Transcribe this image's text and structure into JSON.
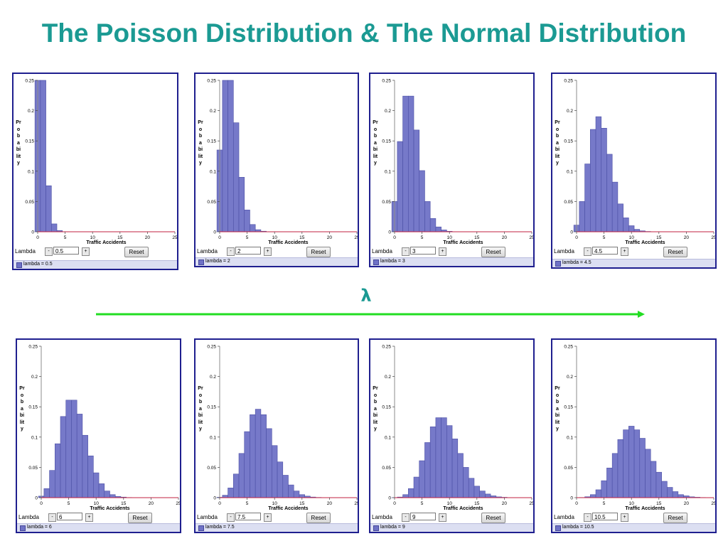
{
  "title": "The Poisson Distribution & The Normal Distribution",
  "lambda_symbol": "λ",
  "colors": {
    "title": "#1b9a93",
    "arrow": "#22dd22",
    "bar": "#7679c9",
    "bar_border": "#4c4fa5",
    "axis": "#c02040",
    "panel_border": "#1f1f8f",
    "legend_bg": "#dcdff2"
  },
  "panel_ui": {
    "ylabel": "Probability",
    "xlabel": "Traffic Accidents",
    "lambda_label": "Lambda",
    "minus": "-",
    "plus": "+",
    "reset": "Reset",
    "yticks": [
      "0",
      "0.05",
      "0.1",
      "0.15",
      "0.2",
      "0.25"
    ],
    "xticks": [
      "0",
      "5",
      "10",
      "15",
      "20",
      "25"
    ]
  },
  "panels": [
    {
      "lambda_value": "0.5",
      "legend": "lambda = 0.5"
    },
    {
      "lambda_value": "2",
      "legend": "lambda = 2"
    },
    {
      "lambda_value": "3",
      "legend": "lambda = 3"
    },
    {
      "lambda_value": "4.5",
      "legend": "lambda = 4.5"
    },
    {
      "lambda_value": "6",
      "legend": "lambda = 6"
    },
    {
      "lambda_value": "7.5",
      "legend": "lambda = 7.5"
    },
    {
      "lambda_value": "9",
      "legend": "lambda = 9"
    },
    {
      "lambda_value": "10.5",
      "legend": "lambda = 10.5"
    }
  ],
  "chart_data": [
    {
      "type": "bar",
      "xlabel": "Traffic Accidents",
      "ylabel": "Probability",
      "xlim": [
        0,
        25
      ],
      "ylim": [
        0,
        0.25
      ],
      "x": [
        0,
        1,
        2,
        3,
        4
      ],
      "values": [
        0.25,
        0.25,
        0.076,
        0.013,
        0.002
      ],
      "legend": "lambda = 0.5"
    },
    {
      "type": "bar",
      "xlabel": "Traffic Accidents",
      "ylabel": "Probability",
      "xlim": [
        0,
        25
      ],
      "ylim": [
        0,
        0.25
      ],
      "x": [
        0,
        1,
        2,
        3,
        4,
        5,
        6,
        7,
        8
      ],
      "values": [
        0.135,
        0.25,
        0.25,
        0.18,
        0.09,
        0.036,
        0.012,
        0.0034,
        0.0009
      ],
      "legend": "lambda = 2"
    },
    {
      "type": "bar",
      "xlabel": "Traffic Accidents",
      "ylabel": "Probability",
      "xlim": [
        0,
        25
      ],
      "ylim": [
        0,
        0.25
      ],
      "x": [
        0,
        1,
        2,
        3,
        4,
        5,
        6,
        7,
        8,
        9,
        10
      ],
      "values": [
        0.05,
        0.149,
        0.224,
        0.224,
        0.168,
        0.101,
        0.05,
        0.022,
        0.008,
        0.003,
        0.0008
      ],
      "legend": "lambda = 3"
    },
    {
      "type": "bar",
      "xlabel": "Traffic Accidents",
      "ylabel": "Probability",
      "xlim": [
        0,
        25
      ],
      "ylim": [
        0,
        0.25
      ],
      "x": [
        0,
        1,
        2,
        3,
        4,
        5,
        6,
        7,
        8,
        9,
        10,
        11,
        12,
        13
      ],
      "values": [
        0.011,
        0.05,
        0.112,
        0.169,
        0.19,
        0.171,
        0.128,
        0.082,
        0.046,
        0.023,
        0.01,
        0.004,
        0.0015,
        0.0005
      ],
      "legend": "lambda = 4.5"
    },
    {
      "type": "bar",
      "xlabel": "Traffic Accidents",
      "ylabel": "Probability",
      "xlim": [
        0,
        25
      ],
      "ylim": [
        0,
        0.25
      ],
      "x": [
        0,
        1,
        2,
        3,
        4,
        5,
        6,
        7,
        8,
        9,
        10,
        11,
        12,
        13,
        14,
        15,
        16
      ],
      "values": [
        0.0025,
        0.015,
        0.045,
        0.089,
        0.134,
        0.161,
        0.161,
        0.138,
        0.103,
        0.069,
        0.041,
        0.023,
        0.011,
        0.005,
        0.002,
        0.0009,
        0.0003
      ],
      "legend": "lambda = 6"
    },
    {
      "type": "bar",
      "xlabel": "Traffic Accidents",
      "ylabel": "Probability",
      "xlim": [
        0,
        25
      ],
      "ylim": [
        0,
        0.25
      ],
      "x": [
        0,
        1,
        2,
        3,
        4,
        5,
        6,
        7,
        8,
        9,
        10,
        11,
        12,
        13,
        14,
        15,
        16,
        17,
        18
      ],
      "values": [
        0.0006,
        0.004,
        0.016,
        0.039,
        0.073,
        0.109,
        0.137,
        0.146,
        0.137,
        0.114,
        0.086,
        0.059,
        0.037,
        0.021,
        0.011,
        0.005,
        0.0025,
        0.001,
        0.0004
      ],
      "legend": "lambda = 7.5"
    },
    {
      "type": "bar",
      "xlabel": "Traffic Accidents",
      "ylabel": "Probability",
      "xlim": [
        0,
        25
      ],
      "ylim": [
        0,
        0.25
      ],
      "x": [
        0,
        1,
        2,
        3,
        4,
        5,
        6,
        7,
        8,
        9,
        10,
        11,
        12,
        13,
        14,
        15,
        16,
        17,
        18,
        19,
        20
      ],
      "values": [
        0.0001,
        0.001,
        0.005,
        0.015,
        0.034,
        0.061,
        0.091,
        0.117,
        0.132,
        0.132,
        0.119,
        0.097,
        0.073,
        0.05,
        0.032,
        0.019,
        0.011,
        0.006,
        0.003,
        0.0013,
        0.0006
      ],
      "legend": "lambda = 9"
    },
    {
      "type": "bar",
      "xlabel": "Traffic Accidents",
      "ylabel": "Probability",
      "xlim": [
        0,
        25
      ],
      "ylim": [
        0,
        0.25
      ],
      "x": [
        0,
        1,
        2,
        3,
        4,
        5,
        6,
        7,
        8,
        9,
        10,
        11,
        12,
        13,
        14,
        15,
        16,
        17,
        18,
        19,
        20,
        21,
        22,
        23
      ],
      "values": [
        0.0,
        0.0003,
        0.0015,
        0.005,
        0.013,
        0.028,
        0.049,
        0.073,
        0.096,
        0.112,
        0.118,
        0.112,
        0.098,
        0.08,
        0.06,
        0.042,
        0.027,
        0.017,
        0.01,
        0.005,
        0.003,
        0.0014,
        0.0007,
        0.0003
      ],
      "legend": "lambda = 10.5"
    }
  ]
}
